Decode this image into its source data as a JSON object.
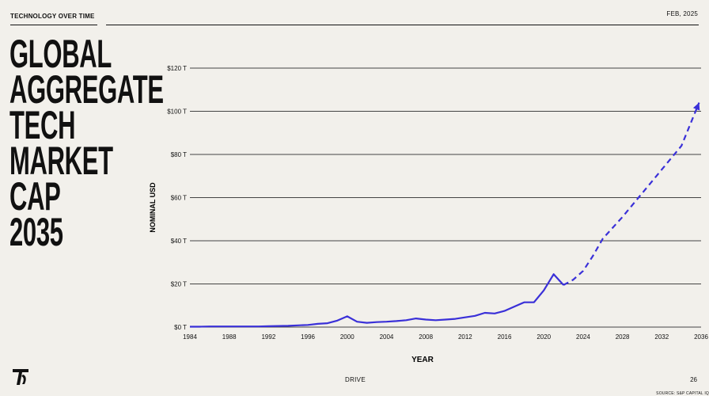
{
  "header": {
    "section_label": "TECHNOLOGY OVER TIME",
    "date": "FEB, 2025"
  },
  "title_lines": [
    "GLOBAL",
    "AGGREGATE",
    "TECH",
    "MARKET",
    "CAP",
    "2035"
  ],
  "footer": {
    "brand": "DRIVE",
    "page": "26",
    "source": "SOURCE: S&P CAPITAL IQ"
  },
  "colors": {
    "line": "#3a30d8",
    "grid": "#444444",
    "text": "#111111"
  },
  "chart_data": {
    "type": "line",
    "xlabel": "YEAR",
    "ylabel": "NOMINAL USD",
    "xlim": [
      1984,
      2036
    ],
    "ylim": [
      0,
      120
    ],
    "x_ticks": [
      "1984",
      "1988",
      "1992",
      "1996",
      "2000",
      "2004",
      "2008",
      "2012",
      "2016",
      "2020",
      "2024",
      "2028",
      "2032",
      "2036"
    ],
    "y_ticks": [
      {
        "value": 0,
        "label": "$0 T"
      },
      {
        "value": 20,
        "label": "$20 T"
      },
      {
        "value": 40,
        "label": "$40 T"
      },
      {
        "value": 60,
        "label": "$60 T"
      },
      {
        "value": 80,
        "label": "$80 T"
      },
      {
        "value": 100,
        "label": "$100 T"
      },
      {
        "value": 120,
        "label": "$120 T"
      }
    ],
    "grid": true,
    "series": [
      {
        "style": "solid",
        "x": [
          1984,
          1985,
          1986,
          1987,
          1988,
          1989,
          1990,
          1991,
          1992,
          1993,
          1994,
          1995,
          1996,
          1997,
          1998,
          1999,
          2000,
          2001,
          2002,
          2003,
          2004,
          2005,
          2006,
          2007,
          2008,
          2009,
          2010,
          2011,
          2012,
          2013,
          2014,
          2015,
          2016,
          2017,
          2018,
          2019,
          2020,
          2021,
          2022
        ],
        "y": [
          0.2,
          0.2,
          0.3,
          0.3,
          0.3,
          0.3,
          0.3,
          0.3,
          0.4,
          0.5,
          0.6,
          0.8,
          1.0,
          1.5,
          1.8,
          3.0,
          5.0,
          2.5,
          2.0,
          2.3,
          2.5,
          2.8,
          3.2,
          4.0,
          3.5,
          3.2,
          3.5,
          3.8,
          4.5,
          5.2,
          6.6,
          6.3,
          7.5,
          9.5,
          11.5,
          11.5,
          17.0,
          24.5,
          19.5
        ]
      },
      {
        "style": "dashed",
        "x": [
          2022,
          2023,
          2024,
          2025,
          2026,
          2028,
          2030,
          2032,
          2034,
          2035.8
        ],
        "y": [
          19.5,
          22.0,
          26.0,
          33.0,
          41.0,
          51.0,
          62.0,
          73.0,
          84.0,
          104.0
        ]
      }
    ]
  }
}
